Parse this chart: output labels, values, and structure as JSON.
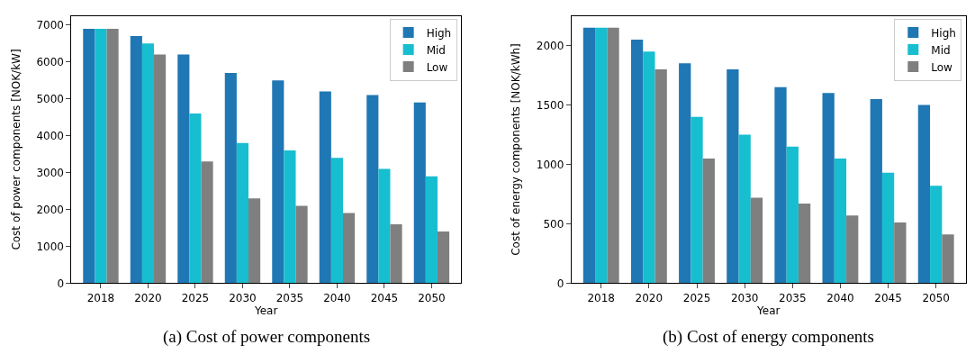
{
  "chart_data": [
    {
      "type": "bar",
      "categories": [
        "2018",
        "2020",
        "2025",
        "2030",
        "2035",
        "2040",
        "2045",
        "2050"
      ],
      "xlabel": "Year",
      "ylabel": "Cost of power components [NOK/kW]",
      "ylim": [
        0,
        7250
      ],
      "yticks": [
        0,
        1000,
        2000,
        3000,
        4000,
        5000,
        6000,
        7000
      ],
      "legend": "top right",
      "annotations": [
        "(a) Cost of power components"
      ],
      "series": [
        {
          "name": "High",
          "color": "#1f77b4",
          "values": [
            6900,
            6700,
            6200,
            5700,
            5500,
            5200,
            5100,
            4900
          ]
        },
        {
          "name": "Mid",
          "color": "#17becf",
          "values": [
            6900,
            6500,
            4600,
            3800,
            3600,
            3400,
            3100,
            2900
          ]
        },
        {
          "name": "Low",
          "color": "#7f7f7f",
          "values": [
            6900,
            6200,
            3300,
            2300,
            2100,
            1900,
            1600,
            1400
          ]
        }
      ]
    },
    {
      "type": "bar",
      "categories": [
        "2018",
        "2020",
        "2025",
        "2030",
        "2035",
        "2040",
        "2045",
        "2050"
      ],
      "xlabel": "Year",
      "ylabel": "Cost of energy components [NOK/kWh]",
      "ylim": [
        0,
        2250
      ],
      "yticks": [
        0,
        500,
        1000,
        1500,
        2000
      ],
      "legend": "top right",
      "annotations": [
        "(b) Cost of energy components"
      ],
      "series": [
        {
          "name": "High",
          "color": "#1f77b4",
          "values": [
            2150,
            2050,
            1850,
            1800,
            1650,
            1600,
            1550,
            1500
          ]
        },
        {
          "name": "Mid",
          "color": "#17becf",
          "values": [
            2150,
            1950,
            1400,
            1250,
            1150,
            1050,
            930,
            820
          ]
        },
        {
          "name": "Low",
          "color": "#7f7f7f",
          "values": [
            2150,
            1800,
            1050,
            720,
            670,
            570,
            510,
            410
          ]
        }
      ]
    }
  ]
}
